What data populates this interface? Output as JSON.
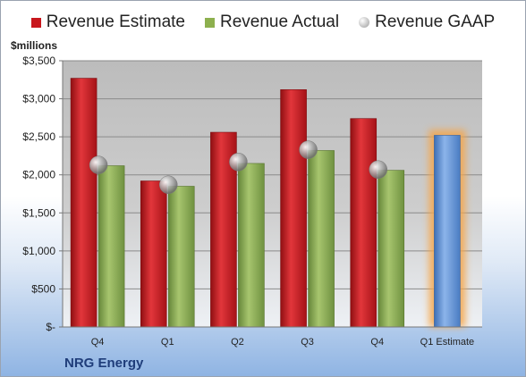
{
  "legend": {
    "estimate": "Revenue Estimate",
    "actual": "Revenue Actual",
    "gaap": "Revenue GAAP"
  },
  "unit_label": "$millions",
  "company": "NRG Energy",
  "colors": {
    "estimate": "#c8171d",
    "actual": "#8db04e",
    "next_estimate": "#5b8fd6",
    "gaap_marker": "#b0b0b0",
    "highlight_glow": "#f6a64a"
  },
  "chart_data": {
    "type": "bar",
    "categories": [
      "Q4",
      "Q1",
      "Q2",
      "Q3",
      "Q4",
      "Q1 Estimate"
    ],
    "ylim": [
      0,
      3500
    ],
    "yticks": [
      0,
      500,
      1000,
      1500,
      2000,
      2500,
      3000,
      3500
    ],
    "ytick_labels": [
      "$-",
      "$500",
      "$1,000",
      "$1,500",
      "$2,000",
      "$2,500",
      "$3,000",
      "$3,500"
    ],
    "grid": true,
    "legend_position": "top",
    "series": [
      {
        "name": "Revenue Estimate",
        "values": [
          3270,
          1920,
          2560,
          3120,
          2740,
          null
        ]
      },
      {
        "name": "Revenue Actual",
        "values": [
          2120,
          1850,
          2150,
          2320,
          2060,
          2520
        ]
      },
      {
        "name": "Revenue GAAP",
        "values": [
          2130,
          1870,
          2170,
          2330,
          2070,
          null
        ]
      }
    ],
    "projected_category": "Q1 Estimate"
  }
}
